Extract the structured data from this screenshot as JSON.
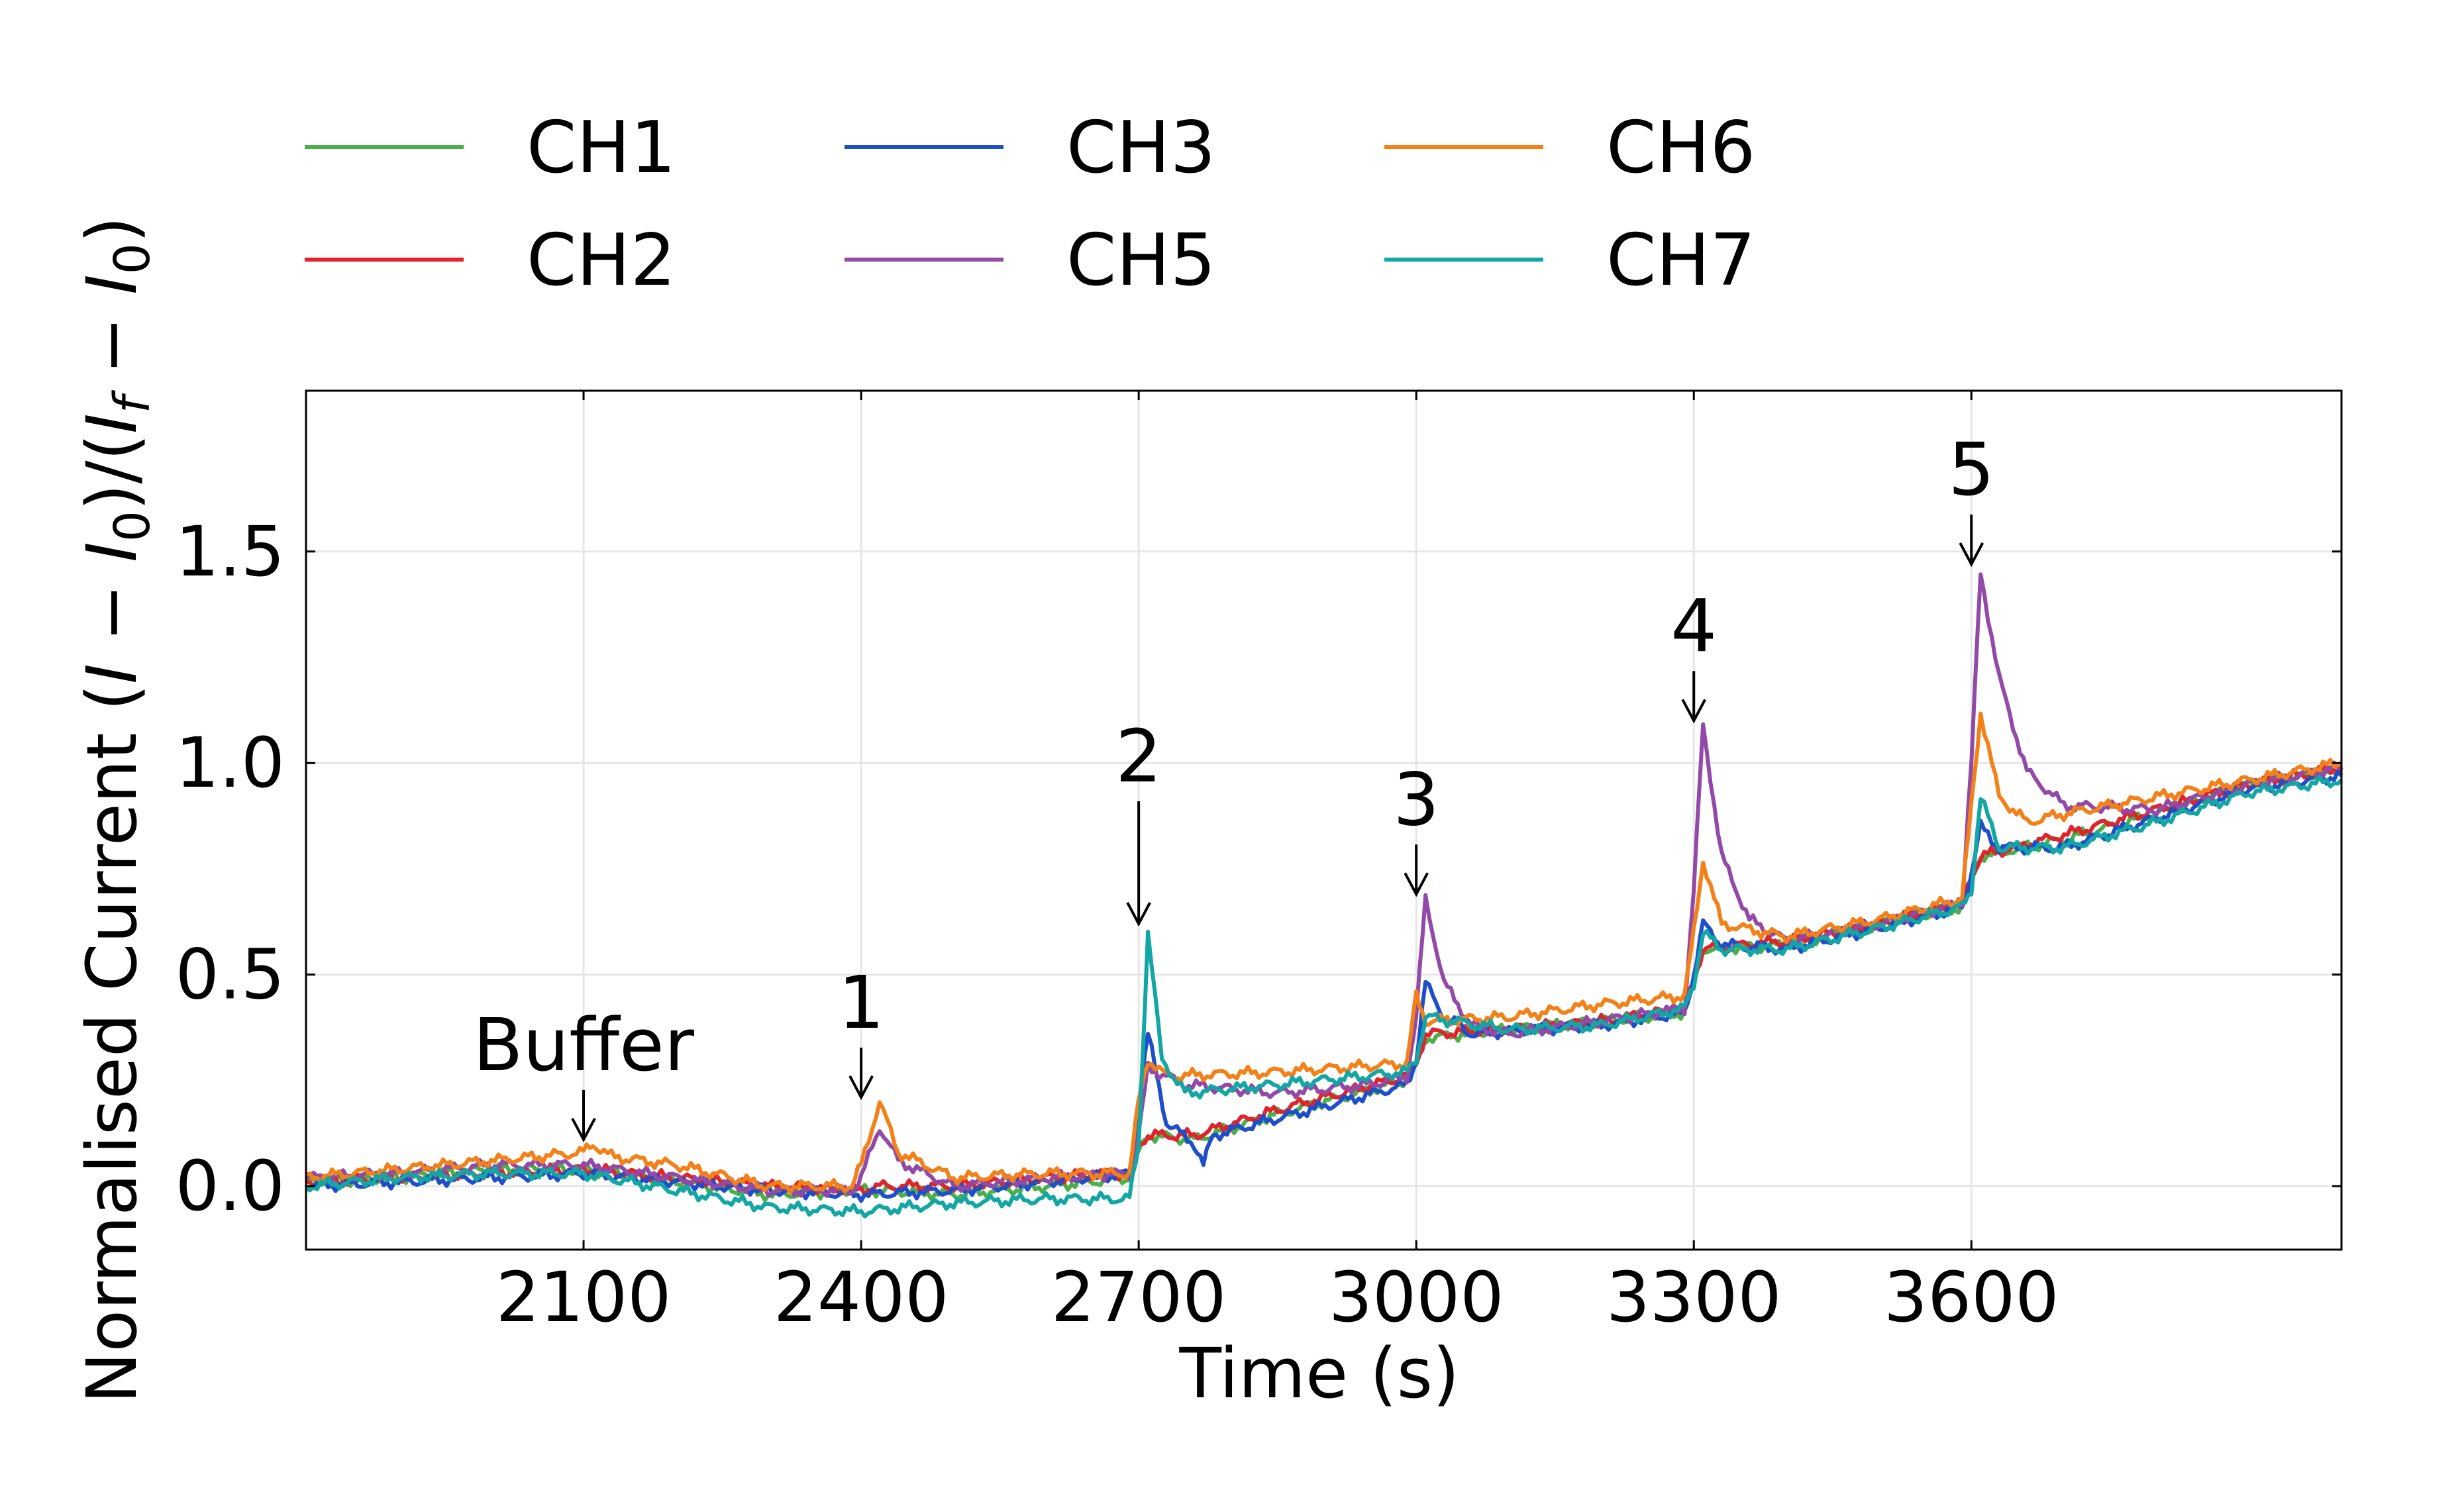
{
  "chart_data": {
    "type": "line",
    "xlabel": "Time (s)",
    "ylabel": "Normalised Current (I − I₀)/(I_f − I₀)",
    "xlim": [
      1800,
      4000
    ],
    "ylim": [
      -0.15,
      1.88
    ],
    "xticks": [
      2100,
      2400,
      2700,
      3000,
      3300,
      3600
    ],
    "yticks": [
      0.0,
      0.5,
      1.0,
      1.5
    ],
    "ytick_labels": [
      "0.0",
      "0.5",
      "1.0",
      "1.5"
    ],
    "grid": true,
    "legend_position": "top",
    "series": [
      {
        "name": "CH1",
        "color": "#4cae4a",
        "points": [
          [
            1800,
            0.01
          ],
          [
            1900,
            0.02
          ],
          [
            2000,
            0.04
          ],
          [
            2100,
            0.04
          ],
          [
            2200,
            0.01
          ],
          [
            2300,
            -0.02
          ],
          [
            2400,
            -0.01
          ],
          [
            2420,
            -0.01
          ],
          [
            2500,
            -0.02
          ],
          [
            2600,
            0.0
          ],
          [
            2690,
            0.02
          ],
          [
            2700,
            0.08
          ],
          [
            2710,
            0.12
          ],
          [
            2760,
            0.11
          ],
          [
            2850,
            0.17
          ],
          [
            2990,
            0.25
          ],
          [
            3000,
            0.28
          ],
          [
            3010,
            0.35
          ],
          [
            3100,
            0.37
          ],
          [
            3200,
            0.39
          ],
          [
            3290,
            0.41
          ],
          [
            3300,
            0.48
          ],
          [
            3310,
            0.56
          ],
          [
            3400,
            0.57
          ],
          [
            3500,
            0.62
          ],
          [
            3590,
            0.66
          ],
          [
            3600,
            0.72
          ],
          [
            3610,
            0.78
          ],
          [
            3700,
            0.82
          ],
          [
            3800,
            0.88
          ],
          [
            3900,
            0.95
          ],
          [
            4000,
            0.98
          ]
        ]
      },
      {
        "name": "CH2",
        "color": "#e0242b",
        "points": [
          [
            1800,
            0.01
          ],
          [
            1900,
            0.02
          ],
          [
            2000,
            0.03
          ],
          [
            2100,
            0.04
          ],
          [
            2200,
            0.02
          ],
          [
            2300,
            0.0
          ],
          [
            2400,
            -0.01
          ],
          [
            2420,
            0.0
          ],
          [
            2500,
            0.0
          ],
          [
            2600,
            0.02
          ],
          [
            2690,
            0.03
          ],
          [
            2700,
            0.1
          ],
          [
            2710,
            0.12
          ],
          [
            2760,
            0.12
          ],
          [
            2850,
            0.18
          ],
          [
            2990,
            0.26
          ],
          [
            3000,
            0.29
          ],
          [
            3010,
            0.36
          ],
          [
            3100,
            0.37
          ],
          [
            3200,
            0.39
          ],
          [
            3290,
            0.42
          ],
          [
            3300,
            0.49
          ],
          [
            3310,
            0.56
          ],
          [
            3400,
            0.58
          ],
          [
            3500,
            0.62
          ],
          [
            3590,
            0.67
          ],
          [
            3600,
            0.73
          ],
          [
            3610,
            0.78
          ],
          [
            3700,
            0.83
          ],
          [
            3800,
            0.89
          ],
          [
            3900,
            0.95
          ],
          [
            4000,
            0.99
          ]
        ]
      },
      {
        "name": "CH3",
        "color": "#1f4ecb",
        "points": [
          [
            1800,
            0.0
          ],
          [
            1900,
            0.01
          ],
          [
            2000,
            0.02
          ],
          [
            2100,
            0.03
          ],
          [
            2200,
            0.01
          ],
          [
            2300,
            -0.01
          ],
          [
            2400,
            -0.02
          ],
          [
            2500,
            -0.01
          ],
          [
            2600,
            0.01
          ],
          [
            2690,
            0.03
          ],
          [
            2700,
            0.2
          ],
          [
            2710,
            0.36
          ],
          [
            2730,
            0.15
          ],
          [
            2760,
            0.1
          ],
          [
            2770,
            0.05
          ],
          [
            2780,
            0.12
          ],
          [
            2850,
            0.16
          ],
          [
            2990,
            0.24
          ],
          [
            3000,
            0.3
          ],
          [
            3010,
            0.48
          ],
          [
            3030,
            0.4
          ],
          [
            3060,
            0.36
          ],
          [
            3200,
            0.38
          ],
          [
            3290,
            0.41
          ],
          [
            3300,
            0.5
          ],
          [
            3310,
            0.62
          ],
          [
            3330,
            0.57
          ],
          [
            3400,
            0.56
          ],
          [
            3500,
            0.61
          ],
          [
            3590,
            0.66
          ],
          [
            3600,
            0.74
          ],
          [
            3610,
            0.85
          ],
          [
            3630,
            0.8
          ],
          [
            3700,
            0.8
          ],
          [
            3800,
            0.87
          ],
          [
            3900,
            0.94
          ],
          [
            4000,
            0.97
          ]
        ]
      },
      {
        "name": "CH5",
        "color": "#9249a8",
        "points": [
          [
            1800,
            0.02
          ],
          [
            1900,
            0.03
          ],
          [
            2000,
            0.05
          ],
          [
            2100,
            0.05
          ],
          [
            2200,
            0.02
          ],
          [
            2300,
            -0.01
          ],
          [
            2390,
            -0.01
          ],
          [
            2400,
            0.02
          ],
          [
            2420,
            0.14
          ],
          [
            2440,
            0.06
          ],
          [
            2500,
            0.0
          ],
          [
            2600,
            0.02
          ],
          [
            2690,
            0.03
          ],
          [
            2700,
            0.12
          ],
          [
            2710,
            0.28
          ],
          [
            2750,
            0.24
          ],
          [
            2850,
            0.22
          ],
          [
            2950,
            0.24
          ],
          [
            2990,
            0.26
          ],
          [
            3000,
            0.4
          ],
          [
            3010,
            0.68
          ],
          [
            3030,
            0.48
          ],
          [
            3060,
            0.38
          ],
          [
            3100,
            0.36
          ],
          [
            3200,
            0.39
          ],
          [
            3290,
            0.42
          ],
          [
            3300,
            0.7
          ],
          [
            3310,
            1.09
          ],
          [
            3330,
            0.78
          ],
          [
            3360,
            0.63
          ],
          [
            3400,
            0.58
          ],
          [
            3500,
            0.62
          ],
          [
            3590,
            0.67
          ],
          [
            3600,
            1.0
          ],
          [
            3610,
            1.45
          ],
          [
            3630,
            1.2
          ],
          [
            3660,
            0.98
          ],
          [
            3700,
            0.9
          ],
          [
            3800,
            0.89
          ],
          [
            3900,
            0.95
          ],
          [
            4000,
            0.99
          ]
        ]
      },
      {
        "name": "CH6",
        "color": "#f38118",
        "points": [
          [
            1800,
            0.02
          ],
          [
            1900,
            0.04
          ],
          [
            2000,
            0.06
          ],
          [
            2100,
            0.08
          ],
          [
            2110,
            0.1
          ],
          [
            2130,
            0.07
          ],
          [
            2200,
            0.05
          ],
          [
            2300,
            0.0
          ],
          [
            2390,
            0.0
          ],
          [
            2400,
            0.05
          ],
          [
            2420,
            0.2
          ],
          [
            2440,
            0.08
          ],
          [
            2500,
            0.02
          ],
          [
            2600,
            0.03
          ],
          [
            2690,
            0.03
          ],
          [
            2700,
            0.2
          ],
          [
            2710,
            0.3
          ],
          [
            2730,
            0.26
          ],
          [
            2850,
            0.27
          ],
          [
            2990,
            0.29
          ],
          [
            3000,
            0.45
          ],
          [
            3010,
            0.39
          ],
          [
            3100,
            0.4
          ],
          [
            3200,
            0.43
          ],
          [
            3290,
            0.45
          ],
          [
            3300,
            0.6
          ],
          [
            3310,
            0.77
          ],
          [
            3330,
            0.62
          ],
          [
            3400,
            0.59
          ],
          [
            3500,
            0.63
          ],
          [
            3590,
            0.68
          ],
          [
            3600,
            0.9
          ],
          [
            3610,
            1.12
          ],
          [
            3630,
            0.92
          ],
          [
            3660,
            0.86
          ],
          [
            3700,
            0.88
          ],
          [
            3800,
            0.92
          ],
          [
            3900,
            0.96
          ],
          [
            4000,
            1.0
          ]
        ]
      },
      {
        "name": "CH7",
        "color": "#12a6a4",
        "points": [
          [
            1800,
            0.0
          ],
          [
            1900,
            0.02
          ],
          [
            2000,
            0.03
          ],
          [
            2100,
            0.03
          ],
          [
            2200,
            -0.01
          ],
          [
            2300,
            -0.05
          ],
          [
            2400,
            -0.06
          ],
          [
            2500,
            -0.04
          ],
          [
            2600,
            -0.03
          ],
          [
            2690,
            -0.03
          ],
          [
            2700,
            0.1
          ],
          [
            2710,
            0.6
          ],
          [
            2725,
            0.3
          ],
          [
            2750,
            0.22
          ],
          [
            2850,
            0.24
          ],
          [
            2990,
            0.27
          ],
          [
            3000,
            0.3
          ],
          [
            3010,
            0.4
          ],
          [
            3100,
            0.37
          ],
          [
            3200,
            0.38
          ],
          [
            3290,
            0.42
          ],
          [
            3300,
            0.48
          ],
          [
            3310,
            0.6
          ],
          [
            3330,
            0.56
          ],
          [
            3400,
            0.56
          ],
          [
            3500,
            0.61
          ],
          [
            3590,
            0.66
          ],
          [
            3600,
            0.7
          ],
          [
            3610,
            0.92
          ],
          [
            3630,
            0.8
          ],
          [
            3700,
            0.8
          ],
          [
            3800,
            0.86
          ],
          [
            3900,
            0.93
          ],
          [
            4000,
            0.96
          ]
        ]
      }
    ],
    "annotations": [
      {
        "label": "Buffer",
        "x": 2100,
        "y_arrow_end": 0.11,
        "arrow_length": "short"
      },
      {
        "label": "1",
        "x": 2400,
        "y_arrow_end": 0.21,
        "arrow_length": "short"
      },
      {
        "label": "2",
        "x": 2700,
        "y_arrow_end": 0.62,
        "arrow_length": "long"
      },
      {
        "label": "3",
        "x": 3000,
        "y_arrow_end": 0.69,
        "arrow_length": "short"
      },
      {
        "label": "4",
        "x": 3300,
        "y_arrow_end": 1.1,
        "arrow_length": "short"
      },
      {
        "label": "5",
        "x": 3600,
        "y_arrow_end": 1.47,
        "arrow_length": "short"
      }
    ]
  }
}
